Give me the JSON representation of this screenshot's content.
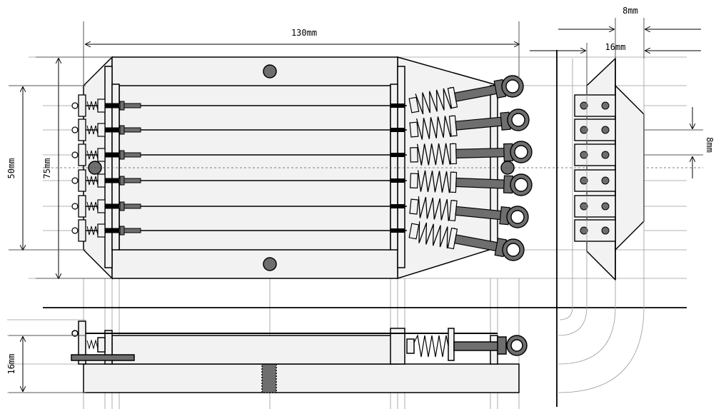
{
  "dimensions": {
    "overall_length": "130mm",
    "height_outer": "75mm",
    "height_inner": "50mm",
    "side_offset": "8mm",
    "side_width": "16mm",
    "string_spacing": "8mm",
    "side_depth": "16mm"
  },
  "string_count": 6,
  "colors": {
    "line": "#000000",
    "grid": "#9a9a9a",
    "fill_light": "#f2f2f2",
    "fill_dark": "#6e6e6e"
  }
}
